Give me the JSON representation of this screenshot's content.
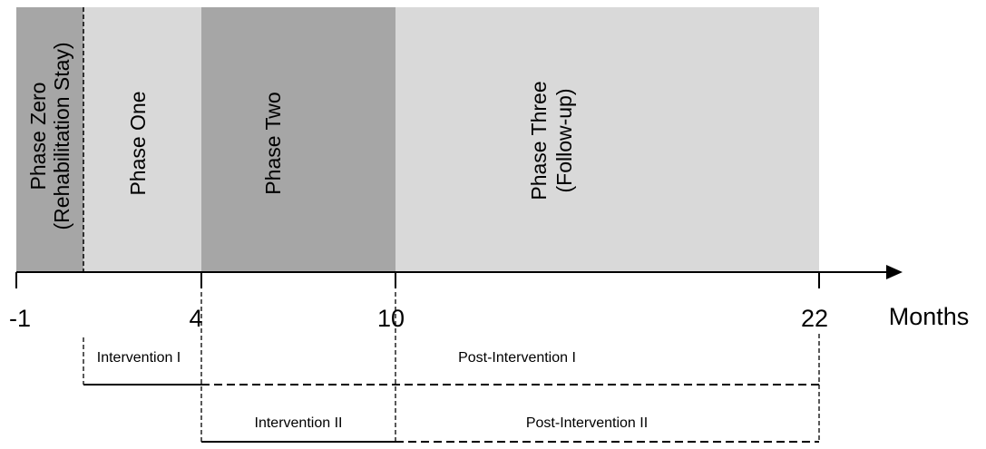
{
  "phases": [
    {
      "lines": [
        "Phase Zero",
        "(Rehabilitation Stay)"
      ]
    },
    {
      "lines": [
        "Phase One"
      ]
    },
    {
      "lines": [
        "Phase Two"
      ]
    },
    {
      "lines": [
        "Phase Three",
        "(Follow-up)"
      ]
    }
  ],
  "axis": {
    "ticks": [
      "-1",
      "4",
      "10",
      "22"
    ],
    "unit": "Months"
  },
  "periods": {
    "intervention_1": "Intervention I",
    "post_intervention_1": "Post-Intervention I",
    "intervention_2": "Intervention II",
    "post_intervention_2": "Post-Intervention II"
  }
}
